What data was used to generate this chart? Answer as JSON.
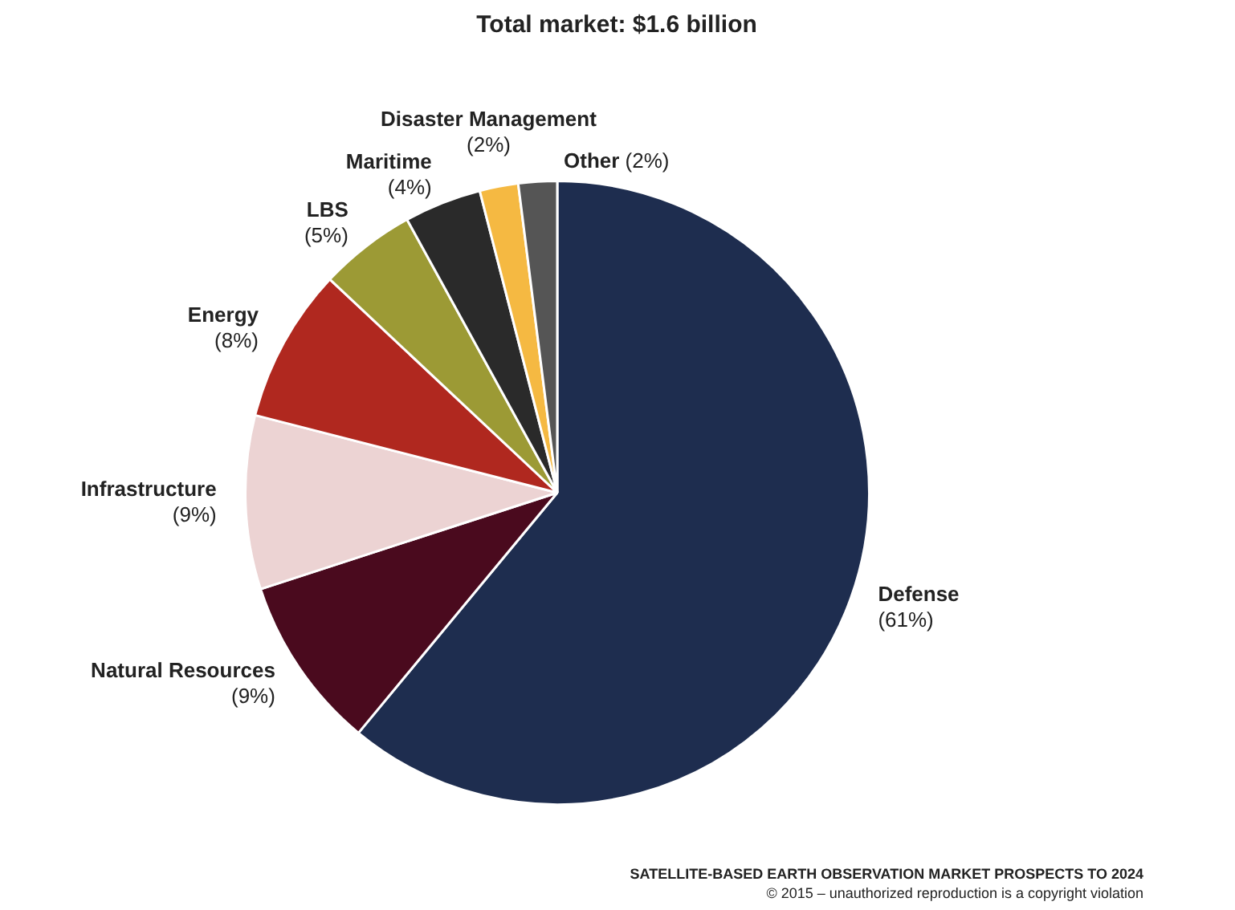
{
  "chart_data": {
    "type": "pie",
    "title": "Total market: $1.6 billion",
    "categories": [
      "Defense",
      "Natural Resources",
      "Infrastructure",
      "Energy",
      "LBS",
      "Maritime",
      "Disaster Management",
      "Other"
    ],
    "values": [
      61,
      9,
      9,
      8,
      5,
      4,
      2,
      2
    ],
    "colors": [
      "#1e2d4f",
      "#4a0a1e",
      "#ecd3d3",
      "#b0281f",
      "#9c9a35",
      "#2a2a2a",
      "#f5b942",
      "#555555"
    ],
    "value_labels": [
      "(61%)",
      "(9%)",
      "(9%)",
      "(8%)",
      "(5%)",
      "(4%)",
      "(2%)",
      "(2%)"
    ],
    "legend": false,
    "annotations": [
      "SATELLITE-BASED EARTH OBSERVATION MARKET PROSPECTS TO 2024",
      "© 2015 – unauthorized reproduction is a copyright violation"
    ]
  }
}
